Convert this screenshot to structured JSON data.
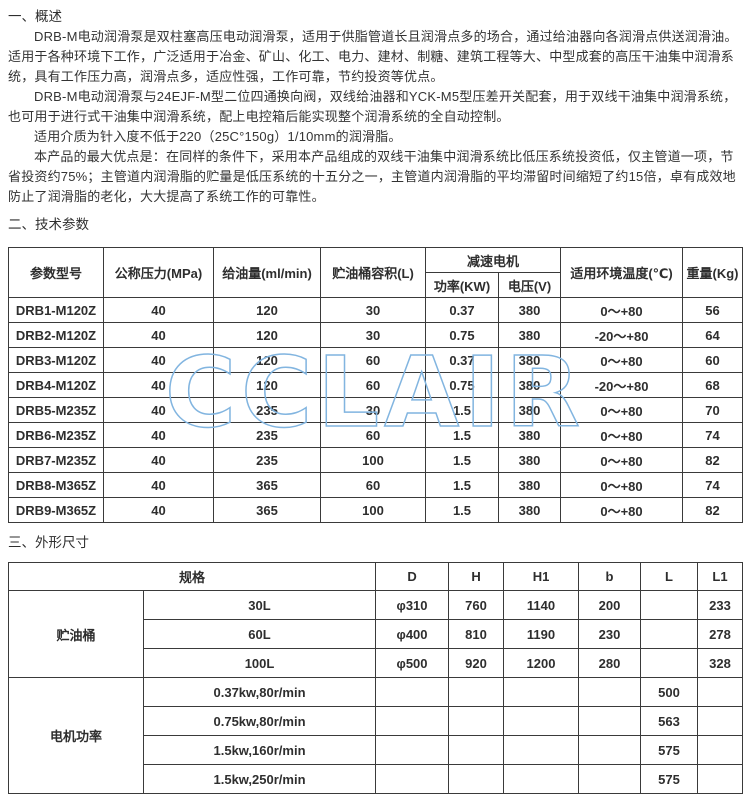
{
  "watermark": {
    "text": "CCLAIR",
    "color": "#82b5e0"
  },
  "overview": {
    "heading": "一、概述",
    "paragraphs": [
      "DRB-M电动润滑泵是双柱塞高压电动润滑泵，适用于供脂管道长且润滑点多的场合，通过给油器向各润滑点供送润滑油。适用于各种环境下工作，广泛适用于冶金、矿山、化工、电力、建材、制糖、建筑工程等大、中型成套的高压干油集中润滑系统，具有工作压力高，润滑点多，适应性强，工作可靠，节约投资等优点。",
      "DRB-M电动润滑泵与24EJF-M型二位四通换向阀，双线给油器和YCK-M5型压差开关配套，用于双线干油集中润滑系统，也可用于进行式干油集中润滑系统，配上电控箱后能实现整个润滑系统的全自动控制。",
      "适用介质为针入度不低于220（25C°150g）1/10mm的润滑脂。",
      "本产品的最大优点是：在同样的条件下，采用本产品组成的双线干油集中润滑系统比低压系统投资低，仅主管道一项，节省投资约75%；主管道内润滑脂的贮量是低压系统的十五分之一，主管道内润滑脂的平均滞留时间缩短了约15倍，卓有成效地防止了润滑脂的老化，大大提高了系统工作的可靠性。"
    ]
  },
  "params": {
    "heading": "二、技术参数",
    "columns": {
      "model": "参数型号",
      "pressure": "公称压力(MPa)",
      "oil_supply": "给油量(ml/min)",
      "tank_volume": "贮油桶容积(L)",
      "motor_group": "减速电机",
      "power": "功率(KW)",
      "voltage": "电压(V)",
      "ambient_temp": "适用环境温度(℃)",
      "weight": "重量(Kg)"
    },
    "rows": [
      [
        "DRB1-M120Z",
        "40",
        "120",
        "30",
        "0.37",
        "380",
        "0～+80",
        "56"
      ],
      [
        "DRB2-M120Z",
        "40",
        "120",
        "30",
        "0.75",
        "380",
        "-20～+80",
        "64"
      ],
      [
        "DRB3-M120Z",
        "40",
        "120",
        "60",
        "0.37",
        "380",
        "0～+80",
        "60"
      ],
      [
        "DRB4-M120Z",
        "40",
        "120",
        "60",
        "0.75",
        "380",
        "-20～+80",
        "68"
      ],
      [
        "DRB5-M235Z",
        "40",
        "235",
        "30",
        "1.5",
        "380",
        "0～+80",
        "70"
      ],
      [
        "DRB6-M235Z",
        "40",
        "235",
        "60",
        "1.5",
        "380",
        "0～+80",
        "74"
      ],
      [
        "DRB7-M235Z",
        "40",
        "235",
        "100",
        "1.5",
        "380",
        "0～+80",
        "82"
      ],
      [
        "DRB8-M365Z",
        "40",
        "365",
        "60",
        "1.5",
        "380",
        "0～+80",
        "74"
      ],
      [
        "DRB9-M365Z",
        "40",
        "365",
        "100",
        "1.5",
        "380",
        "0～+80",
        "82"
      ]
    ]
  },
  "dims": {
    "heading": "三、外形尺寸",
    "columns": {
      "spec": "规格",
      "D": "D",
      "H": "H",
      "H1": "H1",
      "b": "b",
      "L": "L",
      "L1": "L1"
    },
    "groups": [
      {
        "label": "贮油桶",
        "rows": [
          [
            "30L",
            "φ310",
            "760",
            "1140",
            "200",
            "",
            "233"
          ],
          [
            "60L",
            "φ400",
            "810",
            "1190",
            "230",
            "",
            "278"
          ],
          [
            "100L",
            "φ500",
            "920",
            "1200",
            "280",
            "",
            "328"
          ]
        ]
      },
      {
        "label": "电机功率",
        "rows": [
          [
            "0.37kw,80r/min",
            "",
            "",
            "",
            "",
            "500",
            ""
          ],
          [
            "0.75kw,80r/min",
            "",
            "",
            "",
            "",
            "563",
            ""
          ],
          [
            "1.5kw,160r/min",
            "",
            "",
            "",
            "",
            "575",
            ""
          ],
          [
            "1.5kw,250r/min",
            "",
            "",
            "",
            "",
            "575",
            ""
          ]
        ]
      }
    ]
  }
}
